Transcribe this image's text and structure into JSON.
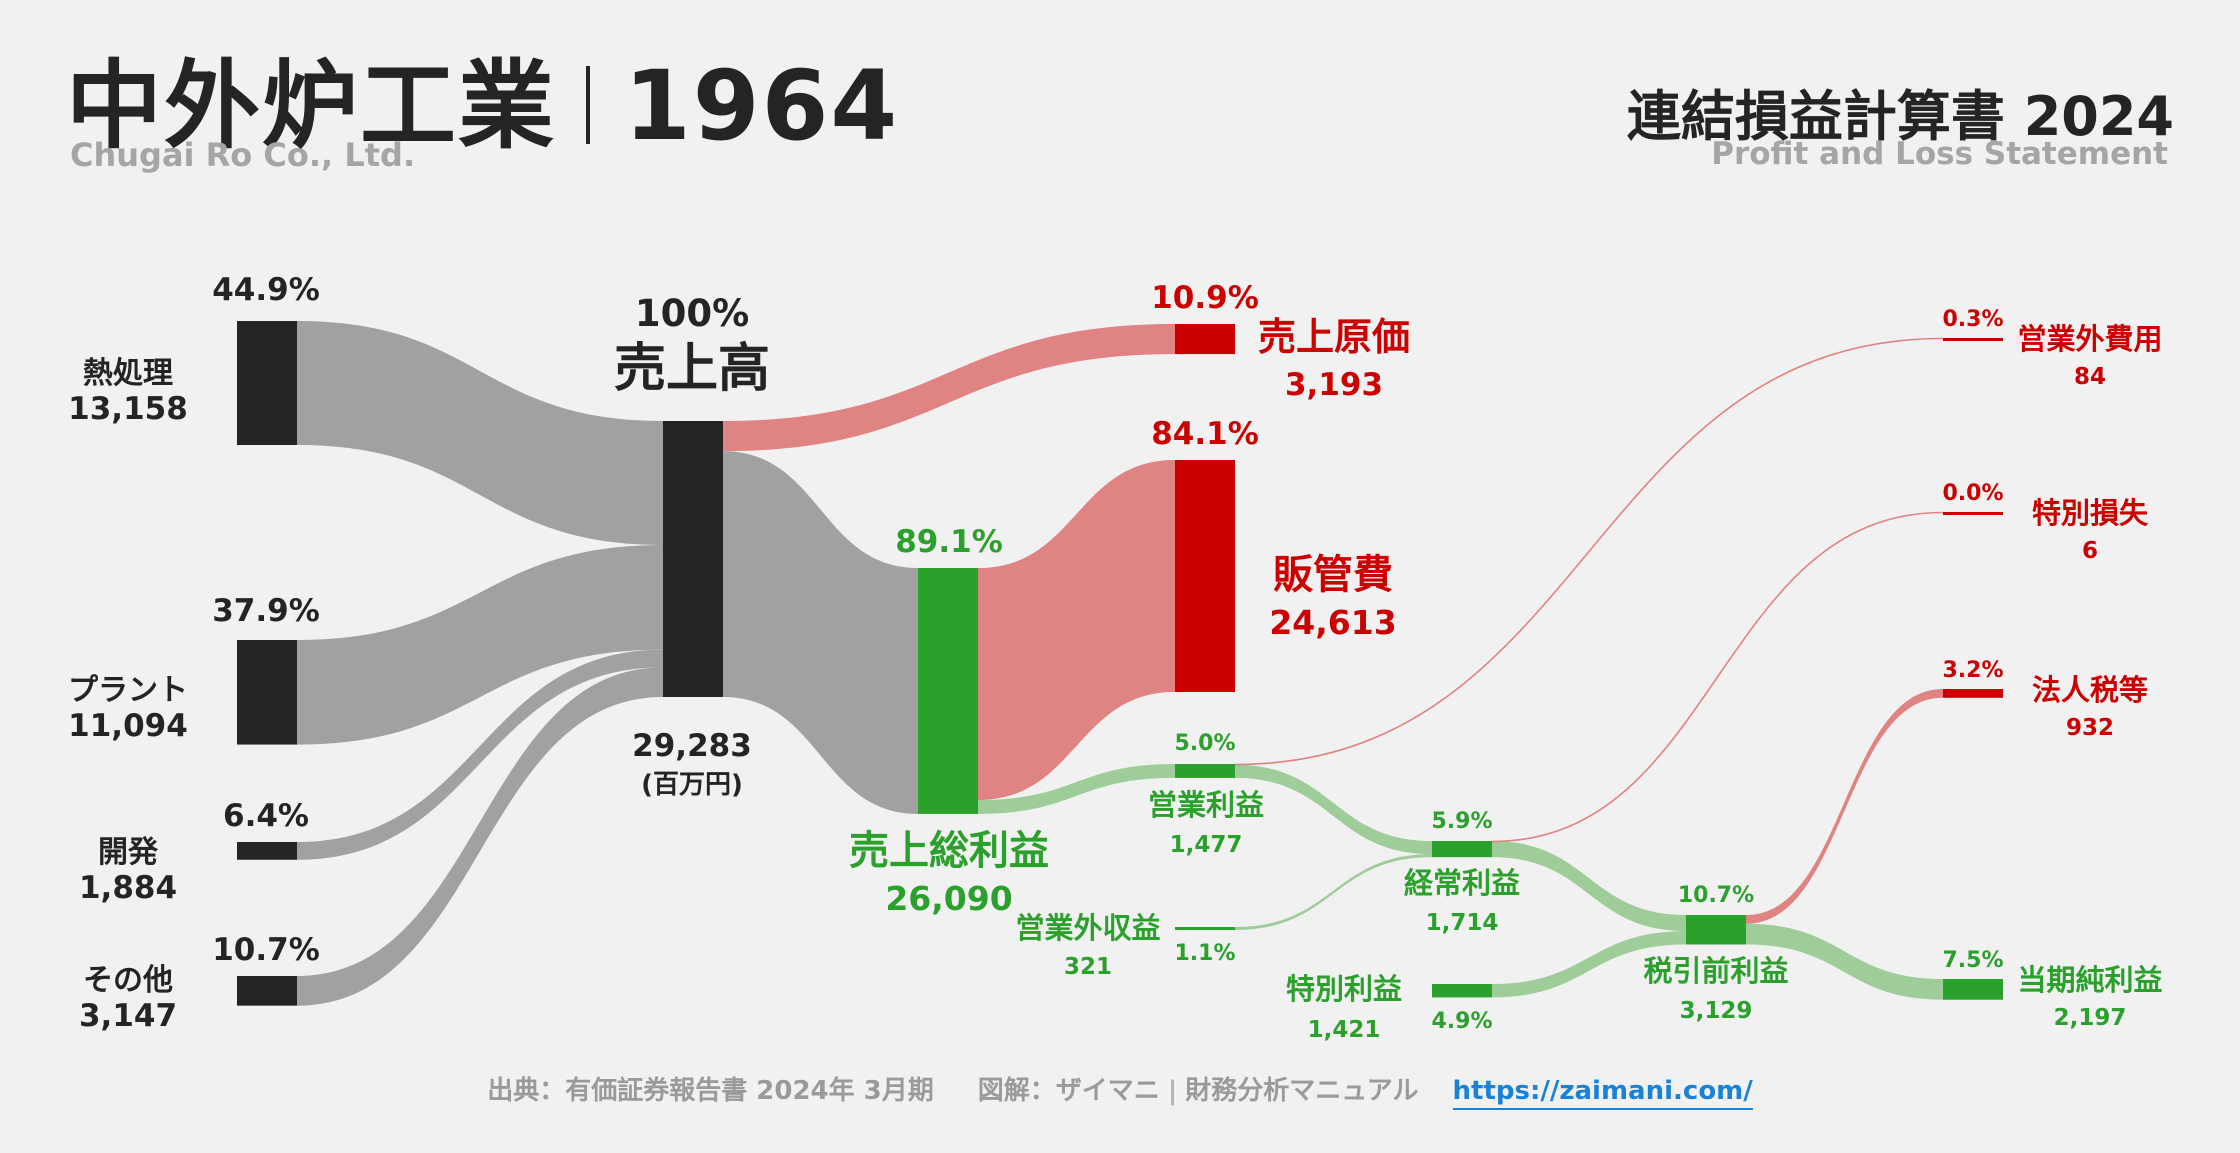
{
  "header": {
    "company": "中外炉工業",
    "code": "1964",
    "company_en": "Chugai Ro Co., Ltd.",
    "statement": "連結損益計算書 2024",
    "statement_en": "Profit and Loss Statement"
  },
  "footer": {
    "source": "出典：有価証券報告書 2024年 3月期",
    "credit_a": "図解：ザイマニ",
    "credit_b": "財務分析マニュアル",
    "url": "https://zaimani.com/"
  },
  "colors": {
    "dark": "#242424",
    "gray_flow": "#a1a1a1",
    "green": "#2ca02c",
    "green_flow": "#9ecd99",
    "red": "#cc0000",
    "red_flow": "#e08383",
    "text_gray": "#9a9a9a",
    "link": "#1a82d6"
  },
  "chart_data": {
    "type": "sankey",
    "title": "連結損益計算書 2024",
    "unit": "(百万円)",
    "nodes": [
      {
        "id": "heat",
        "label": "熱処理",
        "value": 13158,
        "value_text": "13,158",
        "pct": "44.9%"
      },
      {
        "id": "plant",
        "label": "プラント",
        "value": 11094,
        "value_text": "11,094",
        "pct": "37.9%"
      },
      {
        "id": "dev",
        "label": "開発",
        "value": 1884,
        "value_text": "1,884",
        "pct": "6.4%"
      },
      {
        "id": "other",
        "label": "その他",
        "value": 3147,
        "value_text": "3,147",
        "pct": "10.7%"
      },
      {
        "id": "revenue",
        "label": "売上高",
        "value": 29283,
        "value_text": "29,283",
        "pct": "100%"
      },
      {
        "id": "cogs",
        "label": "売上原価",
        "value": 3193,
        "value_text": "3,193",
        "pct": "10.9%"
      },
      {
        "id": "gross",
        "label": "売上総利益",
        "value": 26090,
        "value_text": "26,090",
        "pct": "89.1%"
      },
      {
        "id": "sga",
        "label": "販管費",
        "value": 24613,
        "value_text": "24,613",
        "pct": "84.1%"
      },
      {
        "id": "op",
        "label": "営業利益",
        "value": 1477,
        "value_text": "1,477",
        "pct": "5.0%"
      },
      {
        "id": "nonop_inc",
        "label": "営業外収益",
        "value": 321,
        "value_text": "321",
        "pct": "1.1%"
      },
      {
        "id": "nonop_exp",
        "label": "営業外費用",
        "value": 84,
        "value_text": "84",
        "pct": "0.3%"
      },
      {
        "id": "ordinary",
        "label": "経常利益",
        "value": 1714,
        "value_text": "1,714",
        "pct": "5.9%"
      },
      {
        "id": "ext_gain",
        "label": "特別利益",
        "value": 1421,
        "value_text": "1,421",
        "pct": "4.9%"
      },
      {
        "id": "ext_loss",
        "label": "特別損失",
        "value": 6,
        "value_text": "6",
        "pct": "0.0%"
      },
      {
        "id": "pretax",
        "label": "税引前利益",
        "value": 3129,
        "value_text": "3,129",
        "pct": "10.7%"
      },
      {
        "id": "tax",
        "label": "法人税等",
        "value": 932,
        "value_text": "932",
        "pct": "3.2%"
      },
      {
        "id": "net",
        "label": "当期純利益",
        "value": 2197,
        "value_text": "2,197",
        "pct": "7.5%"
      }
    ],
    "links": [
      {
        "source": "heat",
        "target": "revenue",
        "value": 13158
      },
      {
        "source": "plant",
        "target": "revenue",
        "value": 11094
      },
      {
        "source": "dev",
        "target": "revenue",
        "value": 1884
      },
      {
        "source": "other",
        "target": "revenue",
        "value": 3147
      },
      {
        "source": "revenue",
        "target": "cogs",
        "value": 3193
      },
      {
        "source": "revenue",
        "target": "gross",
        "value": 26090
      },
      {
        "source": "gross",
        "target": "sga",
        "value": 24613
      },
      {
        "source": "gross",
        "target": "op",
        "value": 1477
      },
      {
        "source": "op",
        "target": "ordinary",
        "value": 1393
      },
      {
        "source": "op",
        "target": "nonop_exp",
        "value": 84
      },
      {
        "source": "nonop_inc",
        "target": "ordinary",
        "value": 321
      },
      {
        "source": "ordinary",
        "target": "pretax",
        "value": 1708
      },
      {
        "source": "ordinary",
        "target": "ext_loss",
        "value": 6
      },
      {
        "source": "ext_gain",
        "target": "pretax",
        "value": 1421
      },
      {
        "source": "pretax",
        "target": "tax",
        "value": 932
      },
      {
        "source": "pretax",
        "target": "net",
        "value": 2197
      }
    ]
  }
}
